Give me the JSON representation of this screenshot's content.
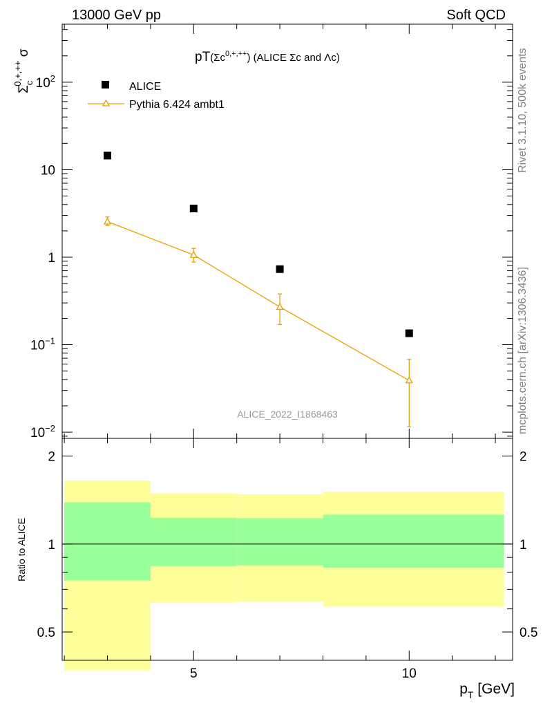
{
  "header": {
    "left_label": "13000 GeV pp",
    "right_label": "Soft QCD"
  },
  "side_labels": {
    "rivet": "Rivet 3.1.10,  500k events",
    "mcplots": "mcplots.cern.ch [arXiv:1306.3436]"
  },
  "chart_data": {
    "type": "scatter",
    "title": "pT(Σc0,+,++) (ALICE Σc and Λc)",
    "title_parts": {
      "main": "pT",
      "open": "(Σc",
      "sup": "0,+,++",
      "close": ") (ALICE Σc and Λc)"
    },
    "ylabel_parts": {
      "main": "Σ",
      "sub": "c",
      "sup": "0,+,++",
      "tail": " σ"
    },
    "xlabel": "p",
    "xlabel_sub": "T",
    "xlabel_unit": " [GeV]",
    "watermark": "ALICE_2022_I1868463",
    "xlim": [
      1.95,
      12.4
    ],
    "ylim": [
      0.0085,
      460
    ],
    "yscale": "log",
    "x_ticks": [
      5,
      10
    ],
    "y_ticks": [
      {
        "value": 0.01,
        "base": "10",
        "exp": "−2"
      },
      {
        "value": 0.1,
        "base": "10",
        "exp": "−1"
      },
      {
        "value": 1,
        "base": "1",
        "exp": ""
      },
      {
        "value": 10,
        "base": "10",
        "exp": ""
      },
      {
        "value": 100,
        "base": "10",
        "exp": "2"
      }
    ],
    "legend": {
      "placement": "top-left"
    },
    "series": [
      {
        "name": "ALICE",
        "marker": "square",
        "color": "#000000",
        "x": [
          3,
          5,
          7,
          10
        ],
        "y": [
          14.5,
          3.6,
          0.73,
          0.135
        ],
        "x_err": [
          [
            2,
            4
          ],
          [
            4,
            6
          ],
          [
            6,
            8
          ],
          [
            8,
            12.2
          ]
        ]
      },
      {
        "name": "Pythia 6.424 ambt1",
        "marker": "open-triangle",
        "color": "#e8a000",
        "x": [
          3,
          5,
          7,
          10
        ],
        "y": [
          2.55,
          1.06,
          0.27,
          0.039
        ],
        "y_err_low": [
          0.25,
          0.18,
          0.1,
          0.0275
        ],
        "y_err_high": [
          0.33,
          0.2,
          0.11,
          0.029
        ]
      }
    ],
    "ratio_panel": {
      "ylabel": "Ratio to ALICE",
      "ylim": [
        0.4,
        2.3
      ],
      "y_ticks": [
        0.5,
        1,
        2
      ],
      "reference_line": 1,
      "inner_band_color": "#99ff99",
      "outer_band_color": "#ffff99",
      "bins": [
        {
          "x": [
            2,
            4
          ],
          "inner": [
            0.75,
            1.39
          ],
          "outer": [
            0.37,
            1.65
          ]
        },
        {
          "x": [
            4,
            6
          ],
          "inner": [
            0.84,
            1.23
          ],
          "outer": [
            0.63,
            1.49
          ]
        },
        {
          "x": [
            6,
            8
          ],
          "inner": [
            0.845,
            1.225
          ],
          "outer": [
            0.635,
            1.48
          ]
        },
        {
          "x": [
            8,
            12.2
          ],
          "inner": [
            0.83,
            1.26
          ],
          "outer": [
            0.61,
            1.51
          ]
        }
      ]
    }
  }
}
